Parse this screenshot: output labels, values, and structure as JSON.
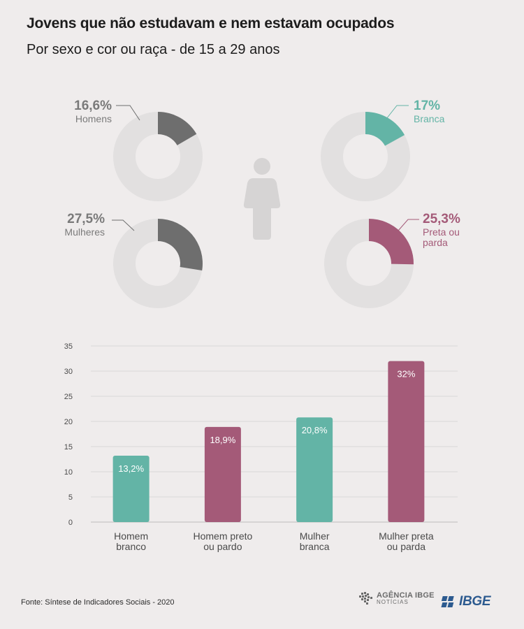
{
  "header": {
    "title": "Jovens que não estudavam e nem estavam ocupados",
    "subtitle": "Por sexo e cor ou raça - de 15 a 29 anos"
  },
  "colors": {
    "gray": "#6e6e6e",
    "teal": "#63b4a6",
    "plum": "#a45a78",
    "ring": "#e2e0e0",
    "figure": "#d6d4d4"
  },
  "donuts": [
    {
      "value": 16.6,
      "pct_label": "16,6%",
      "name": "Homens",
      "color": "gray"
    },
    {
      "value": 17,
      "pct_label": "17%",
      "name": "Branca",
      "color": "teal"
    },
    {
      "value": 27.5,
      "pct_label": "27,5%",
      "name": "Mulheres",
      "color": "gray"
    },
    {
      "value": 25.3,
      "pct_label": "25,3%",
      "name_line1": "Preta ou",
      "name_line2": "parda",
      "color": "plum"
    }
  ],
  "chart_data": {
    "type": "bar",
    "categories": [
      [
        "Homem",
        "branco"
      ],
      [
        "Homem preto",
        "ou pardo"
      ],
      [
        "Mulher",
        "branca"
      ],
      [
        "Mulher preta",
        "ou parda"
      ]
    ],
    "values": [
      13.2,
      18.9,
      20.8,
      32
    ],
    "value_labels": [
      "13,2%",
      "18,9%",
      "20,8%",
      "32%"
    ],
    "bar_colors": [
      "#63b4a6",
      "#a45a78",
      "#63b4a6",
      "#a45a78"
    ],
    "ylim": [
      0,
      35
    ],
    "yticks": [
      0,
      5,
      10,
      15,
      20,
      25,
      30,
      35
    ],
    "grid": true
  },
  "footer": {
    "source": "Fonte: Síntese de Indicadores Sociais - 2020",
    "agencia_line1": "AGÊNCIA IBGE",
    "agencia_line2": "NOTÍCIAS",
    "ibge_logo": "IBGE"
  }
}
